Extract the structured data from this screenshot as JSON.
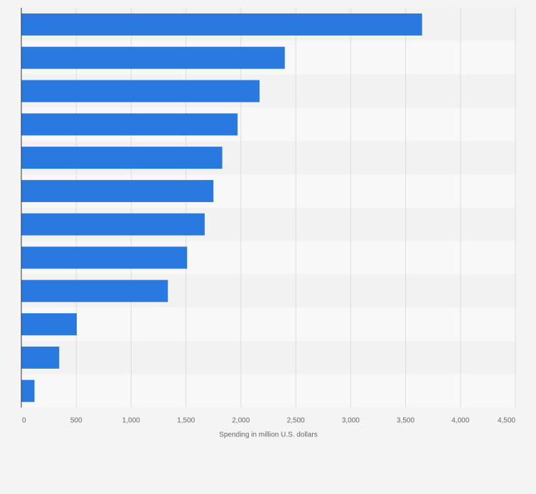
{
  "chart_data": {
    "type": "bar",
    "orientation": "horizontal",
    "title": "",
    "xlabel": "Spending in million U.S. dollars",
    "ylabel": "",
    "xlim": [
      0,
      4500
    ],
    "xticks": [
      0,
      500,
      1000,
      1500,
      2000,
      2500,
      3000,
      3500,
      4000,
      4500
    ],
    "xtick_labels": [
      "0",
      "500",
      "1,000",
      "1,500",
      "2,000",
      "2,500",
      "3,000",
      "3,500",
      "4,000",
      "4,500"
    ],
    "categories": [
      "",
      "",
      "",
      "",
      "",
      "",
      "",
      "",
      "",
      "",
      "",
      ""
    ],
    "values": [
      3650,
      2400,
      2170,
      1970,
      1830,
      1750,
      1670,
      1510,
      1335,
      505,
      345,
      120
    ],
    "grid": true,
    "bar_color": "#2979e0",
    "band_colors": [
      "#f2f2f2",
      "#f8f8f8"
    ],
    "grid_color": "#dcdcdc",
    "axis_color": "#333333",
    "text_color": "#666666"
  }
}
